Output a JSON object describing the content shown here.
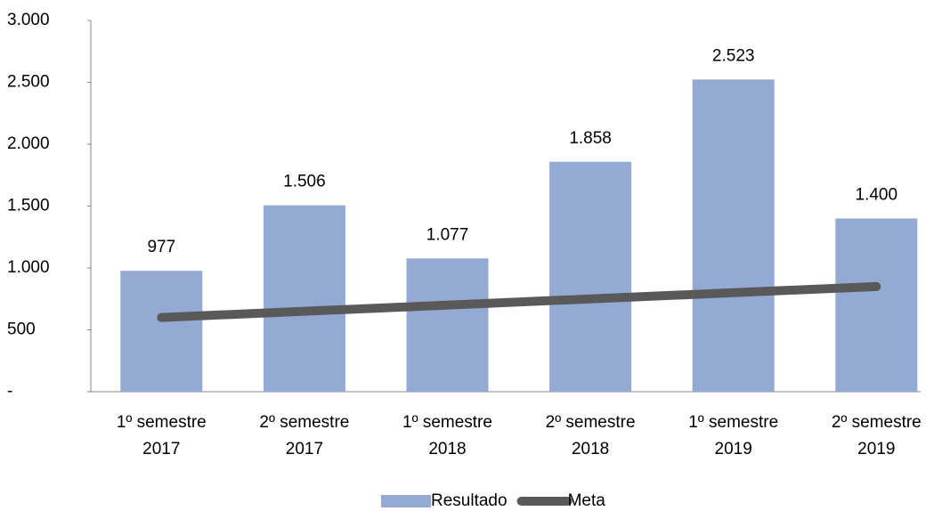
{
  "chart_data": {
    "type": "bar",
    "categories": [
      "1º semestre 2017",
      "2º semestre 2017",
      "1º semestre 2018",
      "2º semestre 2018",
      "1º semestre 2019",
      "2º semestre 2019"
    ],
    "series": [
      {
        "name": "Resultado",
        "type": "bar",
        "color": "#95aad2",
        "values": [
          977,
          1506,
          1077,
          1858,
          2523,
          1400
        ],
        "value_labels": [
          "977",
          "1.506",
          "1.077",
          "1.858",
          "2.523",
          "1.400"
        ]
      },
      {
        "name": "Meta",
        "type": "line",
        "color": "#595959",
        "values": [
          600,
          650,
          700,
          750,
          800,
          850
        ]
      }
    ],
    "ylim": [
      0,
      3000
    ],
    "yticks": [
      {
        "value": 0,
        "label": "-"
      },
      500,
      {
        "value": 1000,
        "label": "1.000"
      },
      {
        "value": 1500,
        "label": "1.500"
      },
      {
        "value": 2000,
        "label": "2.000"
      },
      {
        "value": 2500,
        "label": "2.500"
      },
      {
        "value": 3000,
        "label": "3.000"
      }
    ],
    "legend": "bottom"
  }
}
